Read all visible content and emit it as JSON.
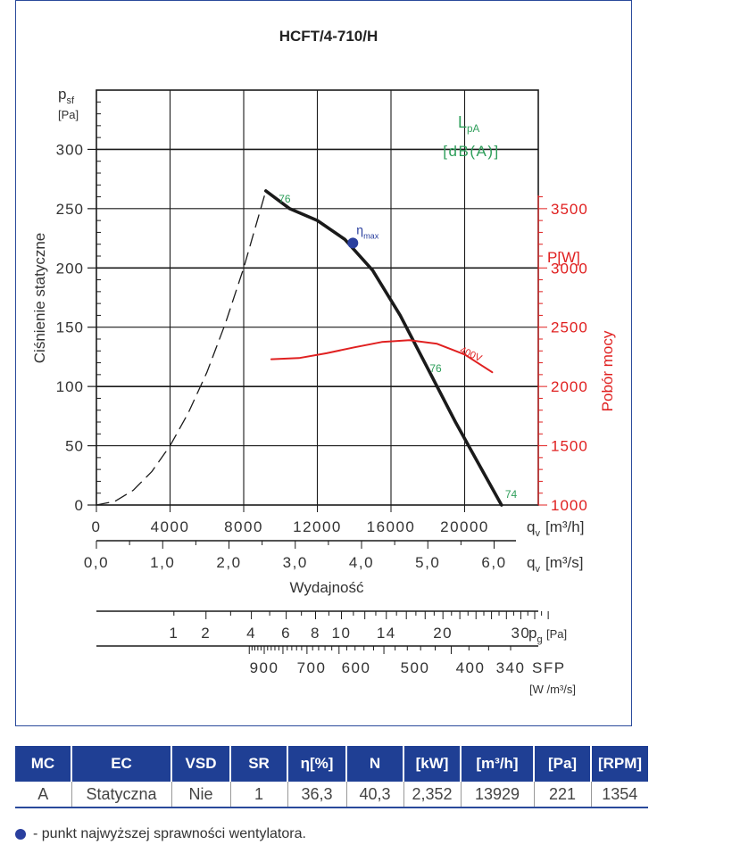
{
  "chart_data": {
    "type": "line",
    "title": "HCFT/4-710/H",
    "y_axis": {
      "label": "Ciśnienie statyczne",
      "symbol": "p",
      "symbol_sub": "sf",
      "unit": "[Pa]",
      "range": [
        0,
        350
      ],
      "ticks": [
        "0",
        "50",
        "100",
        "150",
        "200",
        "250",
        "300"
      ]
    },
    "x_axis_m3h": {
      "range": [
        0,
        24000
      ],
      "ticks": [
        "0",
        "4000",
        "8000",
        "12000",
        "16000",
        "20000"
      ],
      "unit_symbol": "q",
      "unit_sub": "v",
      "unit": "[m³/h]"
    },
    "x_axis_m3s": {
      "ticks": [
        "0,0",
        "1,0",
        "2,0",
        "3,0",
        "4,0",
        "5,0",
        "6,0"
      ],
      "unit_symbol": "q",
      "unit_sub": "v",
      "unit": "[m³/s]",
      "label": "Wydajność"
    },
    "power_axis": {
      "label": "Pobór mocy",
      "unit": "P[W]",
      "range": [
        1000,
        3500
      ],
      "ticks": [
        "1000",
        "1500",
        "2000",
        "2500",
        "3000",
        "3500"
      ]
    },
    "sound_label": {
      "symbol": "L",
      "sub": "pA",
      "unit": "[dB(A)]"
    },
    "pg_scale": {
      "ticks": [
        "1",
        "2",
        "4",
        "6",
        "8",
        "10",
        "14",
        "20",
        "30"
      ],
      "label": "p",
      "label_sub": "g",
      "unit": "[Pa]"
    },
    "sfp_scale": {
      "ticks": [
        "900",
        "700",
        "600",
        "500",
        "400",
        "340"
      ],
      "label": "SFP",
      "unit": "[W /m³/s]"
    },
    "series": [
      {
        "name": "pressure",
        "color": "#1a1a1a",
        "x": [
          9200,
          10500,
          12000,
          13500,
          15000,
          16500,
          18000,
          19500,
          21000,
          22000
        ],
        "y": [
          265,
          250,
          240,
          224,
          198,
          160,
          115,
          70,
          28,
          0
        ]
      },
      {
        "name": "400V",
        "color": "#e02020",
        "x": [
          9500,
          11000,
          12500,
          14000,
          15500,
          17000,
          18500,
          20000,
          21500
        ],
        "y_W": [
          2230,
          2240,
          2280,
          2330,
          2375,
          2390,
          2360,
          2270,
          2120
        ]
      },
      {
        "name": "system-curve",
        "color": "#1a1a1a",
        "dashed": true,
        "x": [
          0,
          1000,
          2000,
          3000,
          4000,
          5000,
          6000,
          7000,
          8000,
          9200
        ],
        "y": [
          0,
          3.1,
          12.5,
          28.1,
          50,
          78,
          112,
          153,
          200,
          265
        ]
      }
    ],
    "sound_markers": [
      {
        "text": "76",
        "x": 9900,
        "y": 255
      },
      {
        "text": "76",
        "x": 18100,
        "y": 112
      },
      {
        "text": "74",
        "x": 22200,
        "y": 6
      }
    ],
    "eta_max": {
      "x": 13929,
      "y": 221,
      "label": "η",
      "label_sub": "max"
    },
    "grid": true
  },
  "table": {
    "headers": [
      "MC",
      "EC",
      "VSD",
      "SR",
      "η[%]",
      "N",
      "[kW]",
      "[m³/h]",
      "[Pa]",
      "[RPM]"
    ],
    "row": [
      "A",
      "Statyczna",
      "Nie",
      "1",
      "36,3",
      "40,3",
      "2,352",
      "13929",
      "221",
      "1354"
    ]
  },
  "legend_note": "- punkt najwyższej sprawności wentylatora.",
  "colors": {
    "accent": "#1f3f94",
    "power": "#e02020",
    "sound": "#2e9e5a",
    "eta": "#2a3f9e"
  }
}
